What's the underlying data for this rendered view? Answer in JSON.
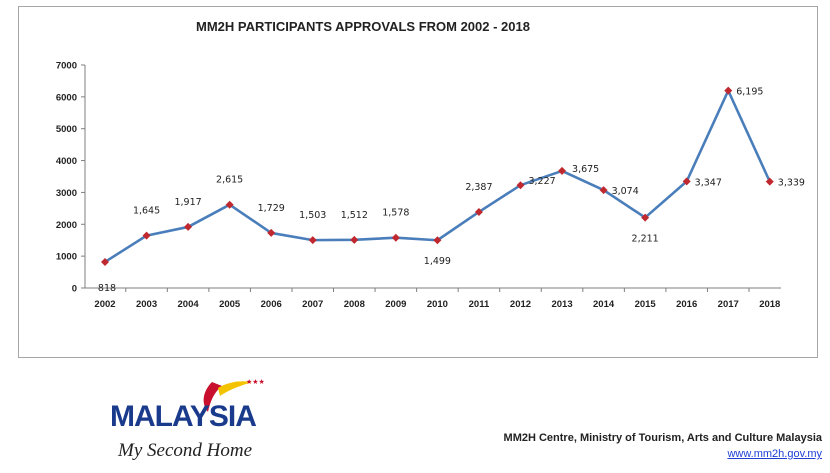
{
  "chart_data": {
    "type": "line",
    "title": "MM2H PARTICIPANTS APPROVALS FROM 2002 - 2018",
    "xlabel": "",
    "ylabel": "",
    "categories": [
      "2002",
      "2003",
      "2004",
      "2005",
      "2006",
      "2007",
      "2008",
      "2009",
      "2010",
      "2011",
      "2012",
      "2013",
      "2014",
      "2015",
      "2016",
      "2017",
      "2018"
    ],
    "series": [
      {
        "name": "Approvals",
        "values": [
          818,
          1645,
          1917,
          2615,
          1729,
          1503,
          1512,
          1578,
          1499,
          2387,
          3227,
          3675,
          3074,
          2211,
          3347,
          6195,
          3339
        ],
        "labels": [
          "818",
          "1,645",
          "1,917",
          "2,615",
          "1,729",
          "1,503",
          "1,512",
          "1,578",
          "1,499",
          "2,387",
          "3,227",
          "3,675",
          "3,074",
          "2,211",
          "3,347",
          "6,195",
          "3,339"
        ]
      }
    ],
    "ylim": [
      0,
      7000
    ],
    "yticks": [
      0,
      1000,
      2000,
      3000,
      4000,
      5000,
      6000,
      7000
    ],
    "ytick_labels": [
      "0",
      "1000",
      "2000",
      "3000",
      "4000",
      "5000",
      "6000",
      "7000"
    ],
    "grid": false,
    "line_color": "#4a7ebb",
    "marker_color": "#c0282f"
  },
  "logo": {
    "wordmark": "MALAYSIA",
    "tagline": "My Second Home",
    "colors": {
      "wordmark": "#1a3a8c",
      "accent_red": "#c8102e",
      "accent_yellow": "#f4c300"
    }
  },
  "footer": {
    "credit": "MM2H Centre, Ministry of Tourism, Arts and Culture Malaysia",
    "url": "www.mm2h.gov.my"
  }
}
